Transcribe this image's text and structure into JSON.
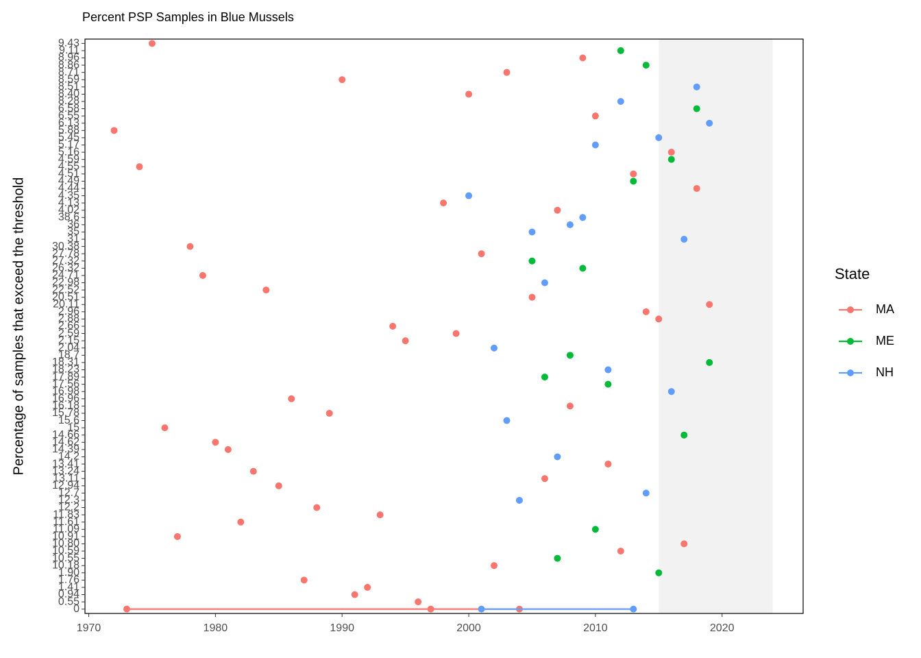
{
  "chart_data": {
    "type": "scatter",
    "title": "Percent PSP Samples in Blue Mussels",
    "y_label": "Percentage of samples that exceed the threshold",
    "legend_title": "State",
    "legend_position": "right",
    "xlim": [
      1969.7,
      2026.4
    ],
    "xticks": [
      1970,
      1980,
      1990,
      2000,
      2010,
      2020
    ],
    "highlight_x": [
      2015,
      2024
    ],
    "highlight_color": "#f2f2f2",
    "y_categories": [
      "0",
      "0.55",
      "0.94",
      "1.41",
      "1.76",
      "1.90",
      "10.18",
      "10.55",
      "10.59",
      "10.80",
      "10.91",
      "11.09",
      "11.61",
      "11.83",
      "12.2",
      "12.3",
      "12.7",
      "12.94",
      "13.11",
      "13.24",
      "13.41",
      "14.2",
      "14.39",
      "14.62",
      "14.66",
      "15",
      "15.6",
      "15.78",
      "16.18",
      "16.96",
      "16.98",
      "17.56",
      "17.89",
      "18.23",
      "18.31",
      "18.7",
      "2.04",
      "2.15",
      "2.59",
      "2.66",
      "2.88",
      "2.96",
      "20.11",
      "20.51",
      "22.52",
      "22.98",
      "24.71",
      "26.32",
      "27.32",
      "27.78",
      "30.38",
      "31",
      "35",
      "36",
      "38.6",
      "4.02",
      "4.13",
      "4.35",
      "4.44",
      "4.49",
      "4.51",
      "4.55",
      "4.59",
      "5.16",
      "5.17",
      "5.45",
      "5.88",
      "6.13",
      "6.55",
      "6.58",
      "8.28",
      "8.40",
      "8.51",
      "8.59",
      "8.71",
      "8.86",
      "8.96",
      "9.11",
      "9.43"
    ],
    "series": [
      {
        "name": "MA",
        "color": "#f8766d",
        "x": [
          1972,
          1973,
          1974,
          1975,
          1976,
          1977,
          1978,
          1979,
          1980,
          1981,
          1982,
          1983,
          1984,
          1985,
          1986,
          1987,
          1988,
          1989,
          1990,
          1991,
          1992,
          1993,
          1994,
          1995,
          1996,
          1997,
          1998,
          1999,
          2000,
          2001,
          2002,
          2003,
          2004,
          2005,
          2006,
          2007,
          2008,
          2009,
          2010,
          2011,
          2012,
          2013,
          2014,
          2015,
          2016,
          2017,
          2018,
          2019
        ],
        "values": [
          5.88,
          0,
          4.55,
          9.43,
          15,
          10.91,
          30.38,
          24.71,
          14.62,
          14.39,
          11.61,
          13.24,
          22.52,
          12.94,
          16.96,
          1.76,
          12.2,
          15.78,
          8.59,
          0.94,
          1.41,
          11.83,
          2.66,
          2.15,
          0.55,
          0,
          4.13,
          2.59,
          8.4,
          27.78,
          10.18,
          8.71,
          0,
          20.51,
          13.11,
          4.02,
          16.18,
          8.96,
          6.55,
          13.41,
          10.59,
          4.51,
          2.96,
          2.88,
          5.16,
          10.8,
          4.44,
          20.11
        ]
      },
      {
        "name": "ME",
        "color": "#00ba38",
        "x": [
          2005,
          2006,
          2007,
          2008,
          2009,
          2010,
          2011,
          2012,
          2013,
          2014,
          2015,
          2016,
          2017,
          2018,
          2019
        ],
        "values": [
          27.32,
          17.89,
          10.55,
          18.7,
          26.32,
          11.09,
          17.56,
          9.11,
          4.49,
          8.86,
          1.9,
          4.59,
          14.66,
          6.58,
          18.31
        ]
      },
      {
        "name": "NH",
        "color": "#619cff",
        "x": [
          2000,
          2001,
          2002,
          2003,
          2004,
          2005,
          2006,
          2007,
          2008,
          2009,
          2010,
          2011,
          2012,
          2013,
          2014,
          2015,
          2016,
          2017,
          2018,
          2019
        ],
        "values": [
          4.35,
          0,
          2.04,
          15.6,
          12.3,
          35,
          22.98,
          14.2,
          36,
          38.6,
          5.17,
          18.23,
          8.28,
          0,
          12.7,
          5.45,
          16.98,
          31,
          8.51,
          6.13
        ]
      }
    ]
  }
}
